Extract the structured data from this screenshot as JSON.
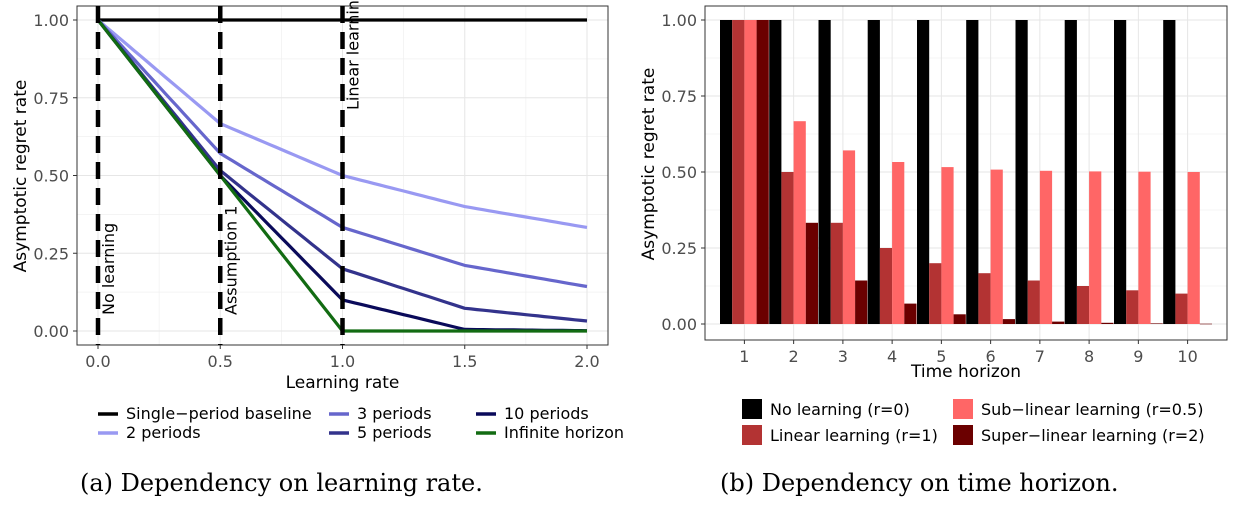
{
  "chart_data": [
    {
      "type": "line",
      "xlabel": "Learning rate",
      "ylabel": "Asymptotic regret rate",
      "xlim": [
        0,
        2
      ],
      "ylim": [
        0,
        1
      ],
      "xticks": [
        "0.0",
        "0.5",
        "1.0",
        "1.5",
        "2.0"
      ],
      "yticks": [
        "0.00",
        "0.25",
        "0.50",
        "0.75",
        "1.00"
      ],
      "grid": true,
      "legend_position": "bottom",
      "series": [
        {
          "name": "Single−period baseline",
          "color": "#000000",
          "x": [
            0,
            2
          ],
          "y": [
            1,
            1
          ]
        },
        {
          "name": "2 periods",
          "color": "#9999f2",
          "x": [
            0,
            0.5,
            1,
            1.5,
            2
          ],
          "y": [
            1,
            0.667,
            0.5,
            0.4,
            0.333
          ]
        },
        {
          "name": "3 periods",
          "color": "#6666cc",
          "x": [
            0,
            0.5,
            1,
            1.5,
            2
          ],
          "y": [
            1,
            0.571,
            0.333,
            0.211,
            0.143
          ]
        },
        {
          "name": "5 periods",
          "color": "#33338c",
          "x": [
            0,
            0.5,
            1,
            1.5,
            2
          ],
          "y": [
            1,
            0.516,
            0.2,
            0.073,
            0.032
          ]
        },
        {
          "name": "10 periods",
          "color": "#0a0a5a",
          "x": [
            0,
            0.5,
            1,
            1.5,
            2
          ],
          "y": [
            1,
            0.5,
            0.1,
            0.005,
            0.001
          ]
        },
        {
          "name": "Infinite horizon",
          "color": "#126b12",
          "x": [
            0,
            1,
            2
          ],
          "y": [
            1,
            0,
            0
          ]
        }
      ],
      "annotations": [
        {
          "x": 0,
          "text": "No learning"
        },
        {
          "x": 0.5,
          "text": "Assumption 1"
        },
        {
          "x": 1,
          "text": "Linear learning"
        }
      ],
      "caption": "(a) Dependency on learning rate."
    },
    {
      "type": "bar",
      "xlabel": "Time horizon",
      "ylabel": "Asymptotic regret rate",
      "categories": [
        "1",
        "2",
        "3",
        "4",
        "5",
        "6",
        "7",
        "8",
        "9",
        "10"
      ],
      "ylim": [
        0,
        1
      ],
      "yticks": [
        "0.00",
        "0.25",
        "0.50",
        "0.75",
        "1.00"
      ],
      "grid": true,
      "legend_position": "bottom",
      "series": [
        {
          "name": "No learning (r=0)",
          "color": "#000000",
          "values": [
            1,
            1,
            1,
            1,
            1,
            1,
            1,
            1,
            1,
            1
          ]
        },
        {
          "name": "Linear learning (r=1)",
          "color": "#b33333",
          "values": [
            1,
            0.5,
            0.333,
            0.25,
            0.2,
            0.167,
            0.143,
            0.125,
            0.111,
            0.1
          ]
        },
        {
          "name": "Sub−linear learning (r=0.5)",
          "color": "#ff6666",
          "values": [
            1,
            0.667,
            0.571,
            0.533,
            0.516,
            0.508,
            0.504,
            0.502,
            0.501,
            0.5
          ]
        },
        {
          "name": "Super−linear learning (r=2)",
          "color": "#6b0000",
          "values": [
            1,
            0.333,
            0.143,
            0.067,
            0.032,
            0.016,
            0.008,
            0.004,
            0.002,
            0.001
          ]
        }
      ],
      "caption": "(b) Dependency on time horizon."
    }
  ]
}
